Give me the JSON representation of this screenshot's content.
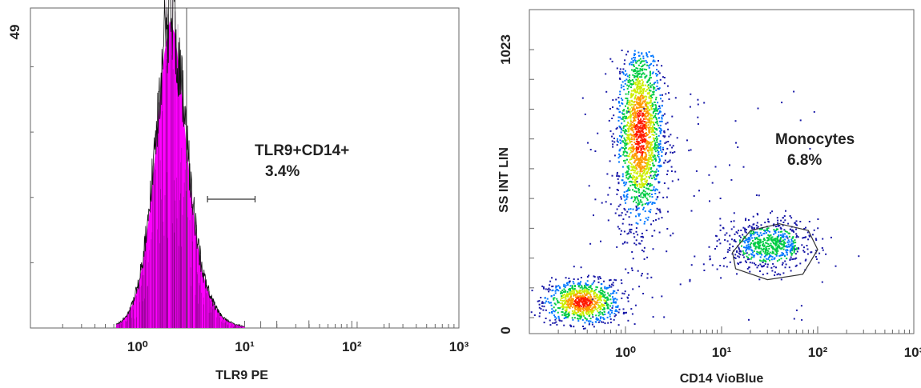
{
  "chart_data": [
    {
      "type": "histogram",
      "xlabel": "TLR9 PE",
      "x_scale": "log",
      "xlim": [
        0.1,
        1000
      ],
      "x_tick_labels": [
        "10⁰",
        "10¹",
        "10²",
        "10³"
      ],
      "y_tick_label_max": "49",
      "ylim": [
        0,
        49
      ],
      "fill_color": "#ff00ff",
      "histogram_bins": {
        "log10_x": [
          -0.2,
          -0.15,
          -0.1,
          -0.05,
          0.0,
          0.05,
          0.1,
          0.15,
          0.2,
          0.25,
          0.3,
          0.35,
          0.4,
          0.45,
          0.5,
          0.55,
          0.6,
          0.65,
          0.7,
          0.75,
          0.8,
          0.85,
          0.9,
          0.95,
          1.0
        ],
        "counts": [
          0.5,
          1,
          2,
          3.5,
          6,
          10,
          16,
          24,
          33,
          42,
          47,
          45,
          38,
          29,
          21,
          14,
          9,
          6,
          4,
          2.5,
          1.5,
          1,
          0.6,
          0.4,
          0.2
        ]
      },
      "gate": {
        "label": "TLR9+CD14+",
        "percent": "3.4%",
        "range_x": [
          4.5,
          12.5
        ]
      }
    },
    {
      "type": "scatter",
      "xlabel": "CD14 VioBlue",
      "ylabel": "SS INT LIN",
      "x_scale": "log",
      "xlim": [
        0.1,
        1000
      ],
      "ylim": [
        0,
        1023
      ],
      "x_tick_labels": [
        "10⁰",
        "10¹",
        "10²",
        "10³"
      ],
      "y_tick_labels": [
        "0",
        "1023"
      ],
      "density_colors": [
        "#1a1aa8",
        "#0077ff",
        "#00cc44",
        "#ccee00",
        "#ff9900",
        "#ff1a00"
      ],
      "populations": [
        {
          "x_center": 0.35,
          "y_center": 100,
          "count": 900
        },
        {
          "x_center": 1.4,
          "y_center": 720,
          "count": 1800
        },
        {
          "x_center": 30,
          "y_center": 310,
          "count": 700
        }
      ],
      "gate": {
        "label": "Monocytes",
        "percent": "6.8%",
        "polygon": [
          [
            13,
            280
          ],
          [
            20,
            360
          ],
          [
            40,
            385
          ],
          [
            80,
            360
          ],
          [
            100,
            290
          ],
          [
            70,
            200
          ],
          [
            30,
            180
          ],
          [
            14,
            220
          ]
        ]
      }
    }
  ]
}
